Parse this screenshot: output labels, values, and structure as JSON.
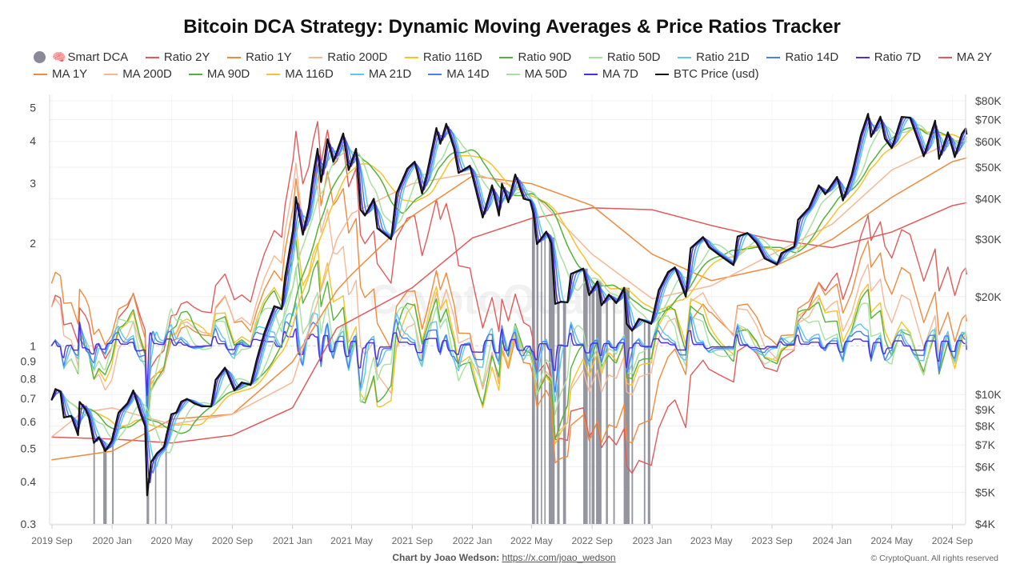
{
  "title": "Bitcoin DCA Strategy: Dynamic Moving Averages & Price Ratios Tracker",
  "legend": {
    "rows": [
      [
        {
          "label": "Smart DCA",
          "color": "#8a8a96",
          "type": "dot",
          "icon": "brain-icon"
        },
        {
          "label": "Ratio 2Y",
          "color": "#e05a5a",
          "type": "line"
        },
        {
          "label": "Ratio 1Y",
          "color": "#f08a3c",
          "type": "line"
        },
        {
          "label": "Ratio 200D",
          "color": "#f5b896",
          "type": "line"
        },
        {
          "label": "Ratio 116D",
          "color": "#f5c32c",
          "type": "line"
        },
        {
          "label": "Ratio 90D",
          "color": "#55b03c",
          "type": "line"
        },
        {
          "label": "Ratio 50D",
          "color": "#a8e0a0",
          "type": "line"
        },
        {
          "label": "Ratio 21D",
          "color": "#5bc8f0",
          "type": "line"
        },
        {
          "label": "Ratio 14D",
          "color": "#4a7ff0",
          "type": "line"
        },
        {
          "label": "Ratio 7D",
          "color": "#4b2de0",
          "type": "line"
        },
        {
          "label": "MA 2Y",
          "color": "#e05a5a",
          "type": "line"
        }
      ],
      [
        {
          "label": "MA 1Y",
          "color": "#f08a3c",
          "type": "line"
        },
        {
          "label": "MA 200D",
          "color": "#f5b896",
          "type": "line"
        },
        {
          "label": "MA 90D",
          "color": "#55b03c",
          "type": "line"
        },
        {
          "label": "MA 116D",
          "color": "#f5c32c",
          "type": "line"
        },
        {
          "label": "MA 21D",
          "color": "#5bc8f0",
          "type": "line"
        },
        {
          "label": "MA 14D",
          "color": "#4a7ff0",
          "type": "line"
        },
        {
          "label": "MA 50D",
          "color": "#a8e0a0",
          "type": "line"
        },
        {
          "label": "MA 7D",
          "color": "#4b2de0",
          "type": "line"
        },
        {
          "label": "BTC Price (usd)",
          "color": "#111111",
          "type": "line"
        }
      ]
    ]
  },
  "chart_data": {
    "type": "line",
    "left_axis": {
      "scale": "log",
      "range": [
        0.3,
        5
      ],
      "ticks": [
        5,
        4,
        3,
        2,
        1,
        0.9,
        0.8,
        0.7,
        0.6,
        0.5,
        0.4,
        0.3
      ],
      "tick_labels": [
        "5",
        "4",
        "3",
        "2",
        "1",
        "0.9",
        "0.8",
        "0.7",
        "0.6",
        "0.5",
        "0.4",
        "0.3"
      ],
      "reference_line": 1
    },
    "right_axis": {
      "scale": "log",
      "range": [
        4000,
        80000
      ],
      "ticks": [
        80000,
        70000,
        60000,
        50000,
        40000,
        30000,
        20000,
        10000,
        9000,
        8000,
        7000,
        6000,
        5000,
        4000
      ],
      "tick_labels": [
        "$80K",
        "$70K",
        "$60K",
        "$50K",
        "$40K",
        "$30K",
        "$20K",
        "$10K",
        "$9K",
        "$8K",
        "$7K",
        "$6K",
        "$5K",
        "$4K"
      ]
    },
    "x_axis": {
      "tick_dates": [
        "2019-09-01",
        "2020-01-01",
        "2020-05-01",
        "2020-09-01",
        "2021-01-01",
        "2021-05-01",
        "2021-09-01",
        "2022-01-01",
        "2022-05-01",
        "2022-09-01",
        "2023-01-01",
        "2023-05-01",
        "2023-09-01",
        "2024-01-01",
        "2024-05-01",
        "2024-09-01"
      ],
      "tick_labels": [
        "2019 Sep",
        "2020 Jan",
        "2020 May",
        "2020 Sep",
        "2021 Jan",
        "2021 May",
        "2021 Sep",
        "2022 Jan",
        "2022 May",
        "2022 Sep",
        "2023 Jan",
        "2023 May",
        "2023 Sep",
        "2024 Jan",
        "2024 May",
        "2024 Sep"
      ]
    },
    "grid": true,
    "btc_price": [
      [
        "2019-08-31",
        9600
      ],
      [
        "2019-09-08",
        10400
      ],
      [
        "2019-09-18",
        10200
      ],
      [
        "2019-09-25",
        8500
      ],
      [
        "2019-10-10",
        8600
      ],
      [
        "2019-10-24",
        7500
      ],
      [
        "2019-10-27",
        9500
      ],
      [
        "2019-11-08",
        9000
      ],
      [
        "2019-11-15",
        8500
      ],
      [
        "2019-11-25",
        7100
      ],
      [
        "2019-12-05",
        7400
      ],
      [
        "2019-12-18",
        6700
      ],
      [
        "2019-12-31",
        7200
      ],
      [
        "2020-01-14",
        8800
      ],
      [
        "2020-02-01",
        9400
      ],
      [
        "2020-02-13",
        10300
      ],
      [
        "2020-02-27",
        8800
      ],
      [
        "2020-03-08",
        8000
      ],
      [
        "2020-03-12",
        4900
      ],
      [
        "2020-03-20",
        6200
      ],
      [
        "2020-04-01",
        6600
      ],
      [
        "2020-04-15",
        6900
      ],
      [
        "2020-04-30",
        8700
      ],
      [
        "2020-05-10",
        8800
      ],
      [
        "2020-05-20",
        9500
      ],
      [
        "2020-06-01",
        9700
      ],
      [
        "2020-06-15",
        9400
      ],
      [
        "2020-07-01",
        9200
      ],
      [
        "2020-07-20",
        9200
      ],
      [
        "2020-07-29",
        11100
      ],
      [
        "2020-08-17",
        12100
      ],
      [
        "2020-09-05",
        10300
      ],
      [
        "2020-09-20",
        10900
      ],
      [
        "2020-10-08",
        10700
      ],
      [
        "2020-10-21",
        12900
      ],
      [
        "2020-11-05",
        15500
      ],
      [
        "2020-11-25",
        18700
      ],
      [
        "2020-12-10",
        18300
      ],
      [
        "2020-12-17",
        23000
      ],
      [
        "2021-01-02",
        32000
      ],
      [
        "2021-01-08",
        40500
      ],
      [
        "2021-01-22",
        31000
      ],
      [
        "2021-02-03",
        37500
      ],
      [
        "2021-02-12",
        47500
      ],
      [
        "2021-02-21",
        57000
      ],
      [
        "2021-02-28",
        45000
      ],
      [
        "2021-03-13",
        61000
      ],
      [
        "2021-03-25",
        52000
      ],
      [
        "2021-04-14",
        63500
      ],
      [
        "2021-04-25",
        49000
      ],
      [
        "2021-05-10",
        57000
      ],
      [
        "2021-05-19",
        37000
      ],
      [
        "2021-05-28",
        35500
      ],
      [
        "2021-06-15",
        40000
      ],
      [
        "2021-06-22",
        32500
      ],
      [
        "2021-07-20",
        30000
      ],
      [
        "2021-07-31",
        41500
      ],
      [
        "2021-08-22",
        49500
      ],
      [
        "2021-09-06",
        52000
      ],
      [
        "2021-09-21",
        41500
      ],
      [
        "2021-10-01",
        48000
      ],
      [
        "2021-10-20",
        66000
      ],
      [
        "2021-10-28",
        59000
      ],
      [
        "2021-11-09",
        68000
      ],
      [
        "2021-11-25",
        57000
      ],
      [
        "2021-12-04",
        48000
      ],
      [
        "2021-12-27",
        50500
      ],
      [
        "2022-01-10",
        41500
      ],
      [
        "2022-01-22",
        35000
      ],
      [
        "2022-02-10",
        44000
      ],
      [
        "2022-02-24",
        35500
      ],
      [
        "2022-03-02",
        44500
      ],
      [
        "2022-03-15",
        39000
      ],
      [
        "2022-03-29",
        47500
      ],
      [
        "2022-04-15",
        40000
      ],
      [
        "2022-04-28",
        39500
      ],
      [
        "2022-05-05",
        36000
      ],
      [
        "2022-05-12",
        29000
      ],
      [
        "2022-05-31",
        31700
      ],
      [
        "2022-06-10",
        29200
      ],
      [
        "2022-06-18",
        19000
      ],
      [
        "2022-06-30",
        19300
      ],
      [
        "2022-07-13",
        19200
      ],
      [
        "2022-07-20",
        23500
      ],
      [
        "2022-08-14",
        24400
      ],
      [
        "2022-08-26",
        20200
      ],
      [
        "2022-09-12",
        22300
      ],
      [
        "2022-09-20",
        18800
      ],
      [
        "2022-10-05",
        20300
      ],
      [
        "2022-10-20",
        19100
      ],
      [
        "2022-11-05",
        21300
      ],
      [
        "2022-11-10",
        16500
      ],
      [
        "2022-11-21",
        15700
      ],
      [
        "2022-12-05",
        17100
      ],
      [
        "2022-12-30",
        16500
      ],
      [
        "2023-01-14",
        20900
      ],
      [
        "2023-02-02",
        23800
      ],
      [
        "2023-02-16",
        24600
      ],
      [
        "2023-03-10",
        20000
      ],
      [
        "2023-03-20",
        28200
      ],
      [
        "2023-04-14",
        30500
      ],
      [
        "2023-04-26",
        28400
      ],
      [
        "2023-05-15",
        27000
      ],
      [
        "2023-06-15",
        25000
      ],
      [
        "2023-06-23",
        30600
      ],
      [
        "2023-07-13",
        31400
      ],
      [
        "2023-08-01",
        29200
      ],
      [
        "2023-08-17",
        26200
      ],
      [
        "2023-09-11",
        25100
      ],
      [
        "2023-09-20",
        27200
      ],
      [
        "2023-10-16",
        28500
      ],
      [
        "2023-10-24",
        34500
      ],
      [
        "2023-11-15",
        37500
      ],
      [
        "2023-12-05",
        44000
      ],
      [
        "2023-12-18",
        41300
      ],
      [
        "2024-01-11",
        46700
      ],
      [
        "2024-01-23",
        39500
      ],
      [
        "2024-02-10",
        47500
      ],
      [
        "2024-02-28",
        62500
      ],
      [
        "2024-03-14",
        73000
      ],
      [
        "2024-03-20",
        62000
      ],
      [
        "2024-04-08",
        71500
      ],
      [
        "2024-04-17",
        61200
      ],
      [
        "2024-05-01",
        57200
      ],
      [
        "2024-05-21",
        71400
      ],
      [
        "2024-06-07",
        71000
      ],
      [
        "2024-06-24",
        60200
      ],
      [
        "2024-07-05",
        54000
      ],
      [
        "2024-07-28",
        69500
      ],
      [
        "2024-08-05",
        53000
      ],
      [
        "2024-08-23",
        64000
      ],
      [
        "2024-09-06",
        53700
      ],
      [
        "2024-09-20",
        63200
      ],
      [
        "2024-09-28",
        65800
      ],
      [
        "2024-09-30",
        63000
      ]
    ],
    "ma_2y": [
      [
        "2019-08-31",
        7400
      ],
      [
        "2020-01-01",
        7300
      ],
      [
        "2020-05-01",
        7100
      ],
      [
        "2020-09-01",
        7500
      ],
      [
        "2021-01-01",
        9100
      ],
      [
        "2021-04-01",
        16000
      ],
      [
        "2021-09-01",
        21300
      ],
      [
        "2022-01-01",
        30300
      ],
      [
        "2022-05-01",
        34800
      ],
      [
        "2022-09-01",
        37500
      ],
      [
        "2023-01-01",
        37000
      ],
      [
        "2023-05-01",
        33100
      ],
      [
        "2023-09-01",
        30000
      ],
      [
        "2024-01-01",
        28300
      ],
      [
        "2024-05-01",
        31600
      ],
      [
        "2024-09-01",
        38100
      ],
      [
        "2024-09-30",
        38900
      ]
    ],
    "ma_1y": [
      [
        "2019-08-31",
        6300
      ],
      [
        "2020-01-01",
        6700
      ],
      [
        "2020-05-01",
        8400
      ],
      [
        "2020-09-01",
        8700
      ],
      [
        "2021-01-01",
        12600
      ],
      [
        "2021-04-01",
        20900
      ],
      [
        "2021-05-01",
        23400
      ],
      [
        "2021-09-01",
        35400
      ],
      [
        "2022-01-01",
        47000
      ],
      [
        "2022-05-01",
        44500
      ],
      [
        "2022-09-01",
        38100
      ],
      [
        "2023-01-01",
        27000
      ],
      [
        "2023-05-01",
        22400
      ],
      [
        "2023-09-01",
        24600
      ],
      [
        "2024-01-01",
        30000
      ],
      [
        "2024-05-01",
        40400
      ],
      [
        "2024-09-01",
        52000
      ],
      [
        "2024-09-30",
        53400
      ]
    ],
    "ma_200d": [
      [
        "2019-08-31",
        7400
      ],
      [
        "2019-11-01",
        8800
      ],
      [
        "2020-01-01",
        9100
      ],
      [
        "2020-05-01",
        8100
      ],
      [
        "2020-09-01",
        8700
      ],
      [
        "2021-01-01",
        10900
      ],
      [
        "2021-04-01",
        30000
      ],
      [
        "2021-05-01",
        36000
      ],
      [
        "2021-09-01",
        44500
      ],
      [
        "2022-01-01",
        48000
      ],
      [
        "2022-05-01",
        42000
      ],
      [
        "2022-09-01",
        27000
      ],
      [
        "2023-01-01",
        19700
      ],
      [
        "2023-05-01",
        21600
      ],
      [
        "2023-09-01",
        27000
      ],
      [
        "2024-01-01",
        33400
      ],
      [
        "2024-05-01",
        49000
      ],
      [
        "2024-09-01",
        60000
      ],
      [
        "2024-09-30",
        61000
      ]
    ],
    "smart_dca_signals": [
      [
        "2019-11-24",
        "2019-11-27"
      ],
      [
        "2019-12-14",
        "2019-12-21"
      ],
      [
        "2020-01-01",
        "2020-01-04"
      ],
      [
        "2020-03-11",
        "2020-03-16"
      ],
      [
        "2020-03-28",
        "2020-03-29"
      ],
      [
        "2020-04-18",
        "2020-04-21"
      ],
      [
        "2022-05-02",
        "2022-05-08"
      ],
      [
        "2022-05-11",
        "2022-05-15"
      ],
      [
        "2022-05-20",
        "2022-05-21"
      ],
      [
        "2022-05-27",
        "2022-05-29"
      ],
      [
        "2022-06-05",
        "2022-06-17"
      ],
      [
        "2022-06-22",
        "2022-06-27"
      ],
      [
        "2022-07-04",
        "2022-07-10"
      ],
      [
        "2022-08-14",
        "2022-08-23"
      ],
      [
        "2022-08-26",
        "2022-08-29"
      ],
      [
        "2022-08-31",
        "2022-09-06"
      ],
      [
        "2022-09-09",
        "2022-09-20"
      ],
      [
        "2022-09-29",
        "2022-10-03"
      ],
      [
        "2022-10-14",
        "2022-10-17"
      ],
      [
        "2022-11-04",
        "2022-11-16"
      ],
      [
        "2022-11-20",
        "2022-11-23"
      ],
      [
        "2022-12-15",
        "2022-12-18"
      ],
      [
        "2022-12-23",
        "2022-12-28"
      ]
    ],
    "colors": {
      "smart_dca": "#8a8a96",
      "2y": "#e05a5a",
      "1y": "#f08a3c",
      "200d": "#f5b896",
      "116d": "#f5c32c",
      "90d": "#55b03c",
      "50d": "#a8e0a0",
      "21d": "#5bc8f0",
      "14d": "#4a7ff0",
      "7d": "#4b2de0",
      "btc": "#111111"
    }
  },
  "watermark": "CryptoQuant",
  "footer": {
    "credit_label": "Chart by Joao Wedson:",
    "credit_link": "https://x.com/joao_wedson",
    "copyright": "© CryptoQuant. All rights reserved"
  }
}
